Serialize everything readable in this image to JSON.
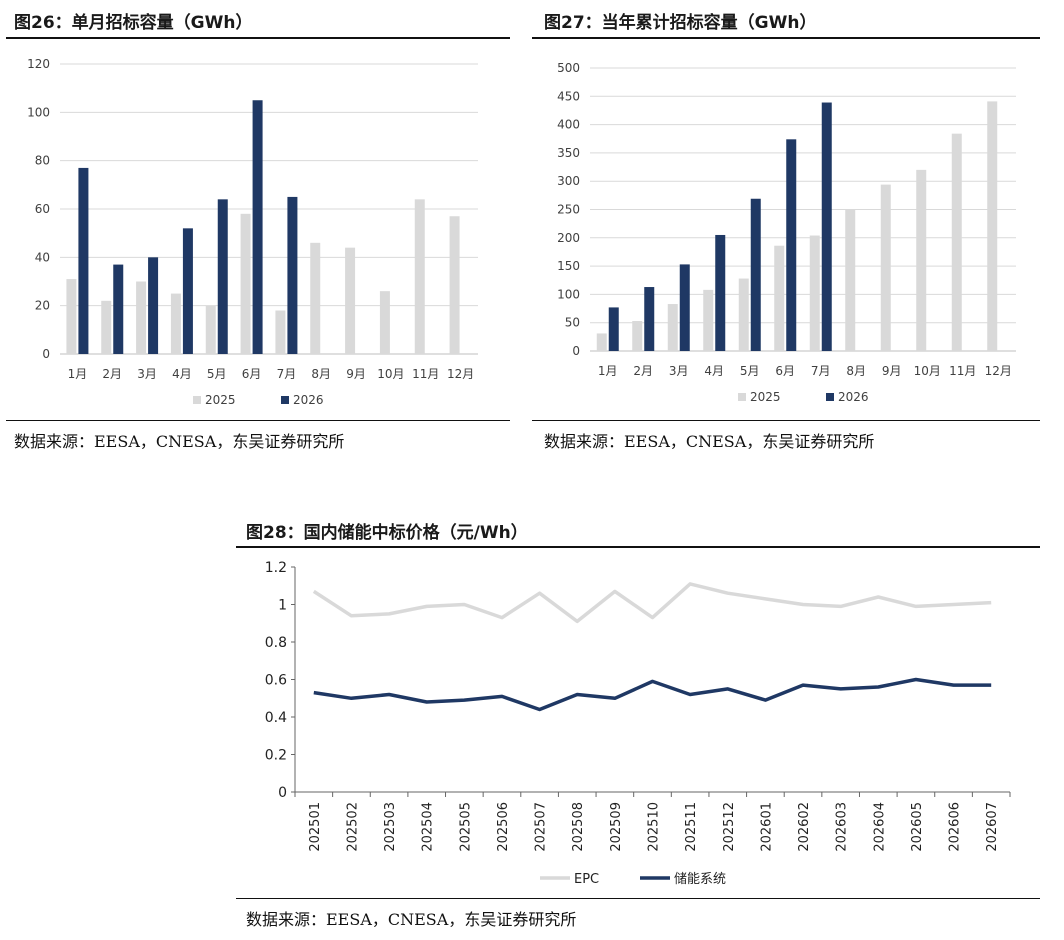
{
  "fig26": {
    "title": "图26：单月招标容量（GWh）",
    "source": "数据来源：EESA，CNESA，东吴证券研究所"
  },
  "fig27": {
    "title": "图27：当年累计招标容量（GWh）",
    "source": "数据来源：EESA，CNESA，东吴证券研究所"
  },
  "fig28": {
    "title": "图28：国内储能中标价格（元/Wh）",
    "source": "数据来源：EESA，CNESA，东吴证券研究所"
  },
  "colors": {
    "light": "#d9d9d9",
    "dark": "#1f3864",
    "grid": "#d9d9d9",
    "axis": "#bfbfbf"
  },
  "chart_data": [
    {
      "id": "fig26",
      "type": "bar",
      "categories": [
        "1月",
        "2月",
        "3月",
        "4月",
        "5月",
        "6月",
        "7月",
        "8月",
        "9月",
        "10月",
        "11月",
        "12月"
      ],
      "series": [
        {
          "name": "2025",
          "color": "#d9d9d9",
          "values": [
            31,
            22,
            30,
            25,
            20,
            58,
            18,
            46,
            44,
            26,
            64,
            57
          ]
        },
        {
          "name": "2026",
          "color": "#1f3864",
          "values": [
            77,
            37,
            40,
            52,
            64,
            105,
            65,
            null,
            null,
            null,
            null,
            null
          ]
        }
      ],
      "ylim": [
        0,
        120
      ],
      "yticks": [
        0,
        20,
        40,
        60,
        80,
        100,
        120
      ],
      "grid": true,
      "legend": "bottom"
    },
    {
      "id": "fig27",
      "type": "bar",
      "categories": [
        "1月",
        "2月",
        "3月",
        "4月",
        "5月",
        "6月",
        "7月",
        "8月",
        "9月",
        "10月",
        "11月",
        "12月"
      ],
      "series": [
        {
          "name": "2025",
          "color": "#d9d9d9",
          "values": [
            31,
            53,
            83,
            108,
            128,
            186,
            204,
            250,
            294,
            320,
            384,
            441
          ]
        },
        {
          "name": "2026",
          "color": "#1f3864",
          "values": [
            77,
            113,
            153,
            205,
            269,
            374,
            439,
            null,
            null,
            null,
            null,
            null
          ]
        }
      ],
      "ylim": [
        0,
        500
      ],
      "yticks": [
        0,
        50,
        100,
        150,
        200,
        250,
        300,
        350,
        400,
        450,
        500
      ],
      "grid": true,
      "legend": "bottom"
    },
    {
      "id": "fig28",
      "type": "line",
      "x": [
        "202501",
        "202502",
        "202503",
        "202504",
        "202505",
        "202506",
        "202507",
        "202508",
        "202509",
        "202510",
        "202511",
        "202512",
        "202601",
        "202602",
        "202603",
        "202604",
        "202605",
        "202606",
        "202607"
      ],
      "series": [
        {
          "name": "EPC",
          "color": "#d9d9d9",
          "values": [
            1.07,
            0.94,
            0.95,
            0.99,
            1.0,
            0.93,
            1.06,
            0.91,
            1.07,
            0.93,
            1.11,
            1.06,
            1.03,
            1.0,
            0.99,
            1.04,
            0.99,
            1.0,
            1.01
          ]
        },
        {
          "name": "储能系统",
          "color": "#1f3864",
          "values": [
            0.53,
            0.5,
            0.52,
            0.48,
            0.49,
            0.51,
            0.44,
            0.52,
            0.5,
            0.59,
            0.52,
            0.55,
            0.49,
            0.57,
            0.55,
            0.56,
            0.6,
            0.57,
            0.57
          ]
        }
      ],
      "ylim": [
        0,
        1.2
      ],
      "yticks": [
        "0",
        "0.2",
        "0.4",
        "0.6",
        "0.8",
        "1",
        "1.2"
      ],
      "grid": false,
      "legend": "bottom"
    }
  ]
}
